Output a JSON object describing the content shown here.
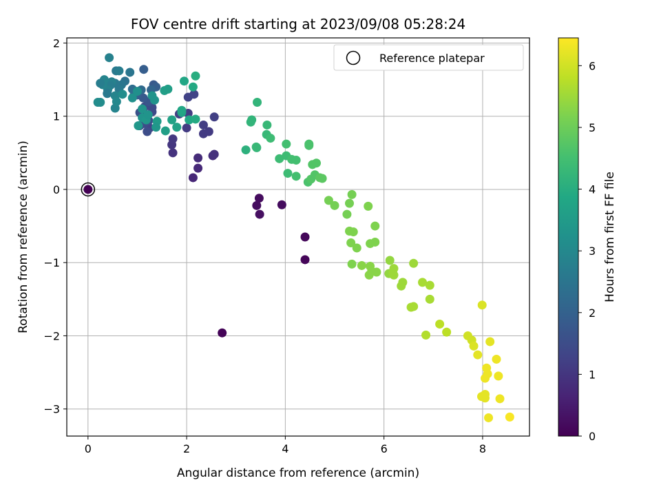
{
  "chart_data": {
    "type": "scatter",
    "title": "FOV centre drift starting at 2023/09/08 05:28:24",
    "xlabel": "Angular distance from reference (arcmin)",
    "ylabel": "Rotation from reference (arcmin)",
    "xlim": [
      -0.43,
      8.95
    ],
    "ylim": [
      -3.37,
      2.07
    ],
    "xticks": [
      0,
      2,
      4,
      6,
      8
    ],
    "yticks": [
      2,
      1,
      0,
      -1,
      -2,
      -3
    ],
    "xtick_labels": [
      "0",
      "2",
      "4",
      "6",
      "8"
    ],
    "ytick_labels": [
      "2",
      "1",
      "0",
      "−1",
      "−2",
      "−3"
    ],
    "grid": true,
    "colormap": "viridis",
    "colorbar": {
      "label": "Hours from first FF file",
      "min": 0,
      "max": 6.45,
      "ticks": [
        0,
        1,
        2,
        3,
        4,
        5,
        6
      ],
      "tick_labels": [
        "0",
        "1",
        "2",
        "3",
        "4",
        "5",
        "6"
      ]
    },
    "legend": {
      "position": "top-right",
      "entries": [
        "Reference platepar"
      ]
    },
    "reference_point": {
      "x": 0,
      "y": 0
    },
    "points": [
      [
        0.0,
        0.0,
        0.0
      ],
      [
        2.72,
        -1.96,
        0.05
      ],
      [
        4.4,
        -0.96,
        0.1
      ],
      [
        4.4,
        -0.65,
        0.12
      ],
      [
        3.47,
        -0.12,
        0.2
      ],
      [
        3.42,
        -0.22,
        0.22
      ],
      [
        3.48,
        -0.34,
        0.25
      ],
      [
        3.93,
        -0.21,
        0.2
      ],
      [
        2.13,
        0.16,
        0.7
      ],
      [
        2.23,
        0.29,
        0.75
      ],
      [
        2.23,
        0.43,
        0.8
      ],
      [
        2.53,
        0.46,
        0.85
      ],
      [
        2.56,
        0.48,
        0.9
      ],
      [
        1.72,
        0.5,
        0.95
      ],
      [
        1.7,
        0.61,
        1.0
      ],
      [
        1.72,
        0.69,
        1.05
      ],
      [
        2.34,
        0.76,
        1.1
      ],
      [
        2.45,
        0.79,
        1.1
      ],
      [
        2.34,
        0.88,
        1.15
      ],
      [
        2.0,
        0.84,
        1.1
      ],
      [
        2.56,
        0.99,
        1.2
      ],
      [
        1.85,
        1.03,
        1.2
      ],
      [
        2.03,
        1.04,
        1.15
      ],
      [
        2.03,
        1.26,
        1.25
      ],
      [
        2.15,
        1.3,
        1.3
      ],
      [
        1.25,
        0.84,
        1.3
      ],
      [
        1.2,
        0.79,
        1.5
      ],
      [
        1.05,
        0.87,
        1.4
      ],
      [
        1.14,
        0.9,
        1.5
      ],
      [
        1.23,
        0.94,
        1.6
      ],
      [
        1.3,
        1.06,
        1.4
      ],
      [
        1.3,
        1.12,
        1.45
      ],
      [
        1.15,
        1.13,
        1.45
      ],
      [
        1.05,
        1.05,
        1.6
      ],
      [
        1.23,
        1.2,
        1.7
      ],
      [
        1.12,
        1.25,
        1.8
      ],
      [
        1.0,
        1.29,
        1.9
      ],
      [
        0.93,
        1.28,
        2.0
      ],
      [
        1.33,
        1.43,
        1.8
      ],
      [
        1.38,
        1.4,
        1.9
      ],
      [
        1.28,
        1.36,
        2.1
      ],
      [
        1.08,
        1.36,
        2.2
      ],
      [
        0.9,
        1.37,
        2.3
      ],
      [
        1.13,
        1.64,
        1.9
      ],
      [
        0.85,
        1.6,
        2.5
      ],
      [
        0.75,
        1.48,
        2.4
      ],
      [
        0.68,
        1.43,
        2.5
      ],
      [
        0.63,
        1.37,
        2.6
      ],
      [
        0.57,
        1.62,
        2.6
      ],
      [
        0.63,
        1.62,
        2.7
      ],
      [
        0.55,
        1.45,
        2.6
      ],
      [
        0.48,
        1.47,
        2.8
      ],
      [
        0.45,
        1.42,
        2.7
      ],
      [
        0.4,
        1.36,
        2.8
      ],
      [
        0.39,
        1.31,
        2.6
      ],
      [
        0.33,
        1.5,
        2.9
      ],
      [
        0.3,
        1.43,
        2.9
      ],
      [
        0.25,
        1.45,
        2.7
      ],
      [
        0.43,
        1.8,
        2.8
      ],
      [
        0.55,
        1.28,
        2.9
      ],
      [
        0.55,
        1.11,
        2.9
      ],
      [
        0.58,
        1.2,
        3.0
      ],
      [
        0.2,
        1.19,
        3.1
      ],
      [
        0.25,
        1.19,
        3.1
      ],
      [
        0.7,
        1.3,
        3.1
      ],
      [
        0.9,
        1.25,
        3.2
      ],
      [
        1.0,
        1.34,
        3.2
      ],
      [
        1.35,
        1.22,
        3.3
      ],
      [
        1.3,
        1.28,
        3.3
      ],
      [
        1.1,
        1.1,
        3.3
      ],
      [
        1.1,
        0.98,
        3.3
      ],
      [
        1.18,
        0.95,
        3.4
      ],
      [
        1.22,
        1.02,
        3.3
      ],
      [
        1.4,
        0.93,
        3.5
      ],
      [
        1.02,
        0.87,
        3.4
      ],
      [
        1.38,
        0.85,
        3.4
      ],
      [
        1.57,
        0.8,
        3.6
      ],
      [
        1.55,
        1.35,
        3.6
      ],
      [
        1.62,
        1.37,
        3.6
      ],
      [
        1.7,
        0.95,
        3.7
      ],
      [
        1.8,
        0.85,
        3.7
      ],
      [
        1.9,
        1.05,
        3.7
      ],
      [
        1.9,
        1.08,
        3.8
      ],
      [
        1.95,
        1.48,
        3.8
      ],
      [
        2.05,
        0.95,
        3.8
      ],
      [
        2.13,
        1.4,
        3.9
      ],
      [
        2.18,
        1.55,
        4.0
      ],
      [
        2.18,
        0.96,
        3.9
      ],
      [
        3.2,
        0.54,
        4.1
      ],
      [
        3.3,
        0.92,
        4.2
      ],
      [
        3.32,
        0.95,
        4.2
      ],
      [
        3.42,
        0.57,
        4.2
      ],
      [
        3.41,
        0.58,
        4.3
      ],
      [
        3.43,
        1.19,
        4.2
      ],
      [
        3.62,
        0.75,
        4.3
      ],
      [
        3.63,
        0.88,
        4.3
      ],
      [
        3.7,
        0.7,
        4.4
      ],
      [
        3.88,
        0.42,
        4.4
      ],
      [
        4.02,
        0.62,
        4.5
      ],
      [
        4.02,
        0.46,
        4.4
      ],
      [
        4.05,
        0.22,
        4.4
      ],
      [
        4.13,
        0.41,
        4.5
      ],
      [
        4.22,
        0.18,
        4.5
      ],
      [
        4.22,
        0.4,
        4.5
      ],
      [
        4.48,
        0.62,
        4.6
      ],
      [
        4.48,
        0.6,
        4.6
      ],
      [
        4.46,
        0.1,
        4.6
      ],
      [
        4.52,
        0.14,
        4.7
      ],
      [
        4.55,
        0.34,
        4.7
      ],
      [
        4.6,
        0.2,
        4.7
      ],
      [
        4.63,
        0.36,
        4.7
      ],
      [
        4.7,
        0.16,
        4.8
      ],
      [
        4.75,
        0.15,
        4.8
      ],
      [
        4.88,
        -0.15,
        5.1
      ],
      [
        5.0,
        -0.22,
        5.1
      ],
      [
        5.25,
        -0.34,
        5.1
      ],
      [
        5.3,
        -0.19,
        5.1
      ],
      [
        5.35,
        -0.07,
        5.1
      ],
      [
        5.3,
        -0.57,
        5.2
      ],
      [
        5.38,
        -0.58,
        5.2
      ],
      [
        5.33,
        -0.73,
        5.2
      ],
      [
        5.45,
        -0.8,
        5.2
      ],
      [
        5.35,
        -1.02,
        5.2
      ],
      [
        5.55,
        -1.04,
        5.3
      ],
      [
        5.68,
        -0.23,
        5.2
      ],
      [
        5.72,
        -1.05,
        5.3
      ],
      [
        5.7,
        -1.17,
        5.3
      ],
      [
        5.75,
        -1.12,
        5.3
      ],
      [
        5.72,
        -0.74,
        5.2
      ],
      [
        5.82,
        -0.72,
        5.2
      ],
      [
        5.82,
        -0.5,
        5.2
      ],
      [
        5.85,
        -1.13,
        5.3
      ],
      [
        6.12,
        -0.97,
        5.4
      ],
      [
        6.1,
        -1.15,
        5.4
      ],
      [
        6.2,
        -1.08,
        5.5
      ],
      [
        6.18,
        -1.14,
        5.5
      ],
      [
        6.2,
        -1.17,
        5.5
      ],
      [
        6.35,
        -1.32,
        5.5
      ],
      [
        6.38,
        -1.27,
        5.5
      ],
      [
        6.55,
        -1.61,
        5.6
      ],
      [
        6.6,
        -1.6,
        5.6
      ],
      [
        6.6,
        -1.01,
        5.5
      ],
      [
        6.78,
        -1.27,
        5.6
      ],
      [
        6.85,
        -1.99,
        5.7
      ],
      [
        6.93,
        -1.31,
        5.6
      ],
      [
        6.93,
        -1.5,
        5.6
      ],
      [
        7.13,
        -1.84,
        5.8
      ],
      [
        7.27,
        -1.95,
        5.8
      ],
      [
        7.7,
        -2.0,
        6.0
      ],
      [
        7.78,
        -2.06,
        6.0
      ],
      [
        7.82,
        -2.14,
        6.1
      ],
      [
        7.9,
        -2.26,
        6.2
      ],
      [
        7.98,
        -2.83,
        6.2
      ],
      [
        7.99,
        -1.58,
        6.1
      ],
      [
        8.05,
        -2.85,
        6.2
      ],
      [
        8.05,
        -2.8,
        6.2
      ],
      [
        8.05,
        -2.58,
        6.3
      ],
      [
        8.08,
        -2.44,
        6.3
      ],
      [
        8.1,
        -2.52,
        6.3
      ],
      [
        8.12,
        -3.12,
        6.3
      ],
      [
        8.15,
        -2.08,
        6.2
      ],
      [
        8.28,
        -2.32,
        6.3
      ],
      [
        8.32,
        -2.55,
        6.3
      ],
      [
        8.35,
        -2.86,
        6.3
      ],
      [
        8.55,
        -3.11,
        6.4
      ]
    ]
  }
}
